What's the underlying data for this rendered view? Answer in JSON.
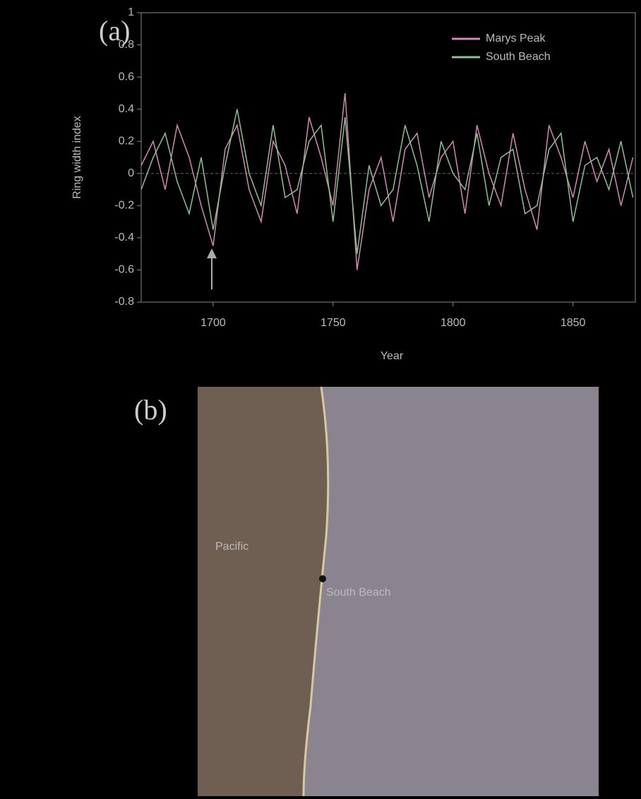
{
  "chart_data": {
    "type": "line",
    "panel_label": "(a)",
    "y_label": "Ring width index",
    "x_label": "Year",
    "x": [
      1670,
      1675,
      1680,
      1685,
      1690,
      1695,
      1700,
      1705,
      1710,
      1715,
      1720,
      1725,
      1730,
      1735,
      1740,
      1745,
      1750,
      1755,
      1760,
      1765,
      1770,
      1775,
      1780,
      1785,
      1790,
      1795,
      1800,
      1805,
      1810,
      1815,
      1820,
      1825,
      1830,
      1835,
      1840,
      1845,
      1850,
      1855,
      1860,
      1865,
      1870,
      1875
    ],
    "series": [
      {
        "name": "Marys Peak",
        "color": "#d08ab0",
        "values": [
          0.05,
          0.2,
          -0.1,
          0.3,
          0.1,
          -0.2,
          -0.45,
          0.15,
          0.3,
          -0.1,
          -0.3,
          0.2,
          0.05,
          -0.25,
          0.35,
          0.1,
          -0.2,
          0.5,
          -0.6,
          -0.1,
          0.1,
          -0.3,
          0.15,
          0.25,
          -0.15,
          0.1,
          0.2,
          -0.25,
          0.3,
          0.0,
          -0.2,
          0.25,
          -0.1,
          -0.35,
          0.3,
          0.1,
          -0.15,
          0.2,
          -0.05,
          0.15,
          -0.2,
          0.1
        ]
      },
      {
        "name": "South Beach",
        "color": "#8fbf8f",
        "values": [
          -0.1,
          0.1,
          0.25,
          -0.05,
          -0.25,
          0.1,
          -0.35,
          0.05,
          0.4,
          0.0,
          -0.2,
          0.3,
          -0.15,
          -0.1,
          0.2,
          0.3,
          -0.3,
          0.35,
          -0.5,
          0.05,
          -0.2,
          -0.1,
          0.3,
          0.05,
          -0.3,
          0.2,
          0.0,
          -0.1,
          0.25,
          -0.2,
          0.1,
          0.15,
          -0.25,
          -0.2,
          0.15,
          0.25,
          -0.3,
          0.05,
          0.1,
          -0.1,
          0.2,
          -0.15
        ]
      }
    ],
    "xlim": [
      1670,
      1876
    ],
    "xticks": [
      1700,
      1750,
      1800,
      1850
    ],
    "ylim": [
      -0.8,
      1.0
    ],
    "yticks": [
      -0.8,
      -0.6,
      -0.4,
      -0.2,
      0.0,
      0.2,
      0.4,
      0.6,
      0.8,
      1.0
    ],
    "legend": "upper right"
  },
  "map": {
    "panel_label": "(b)",
    "places": [
      "Pacific",
      "South Beach"
    ]
  }
}
